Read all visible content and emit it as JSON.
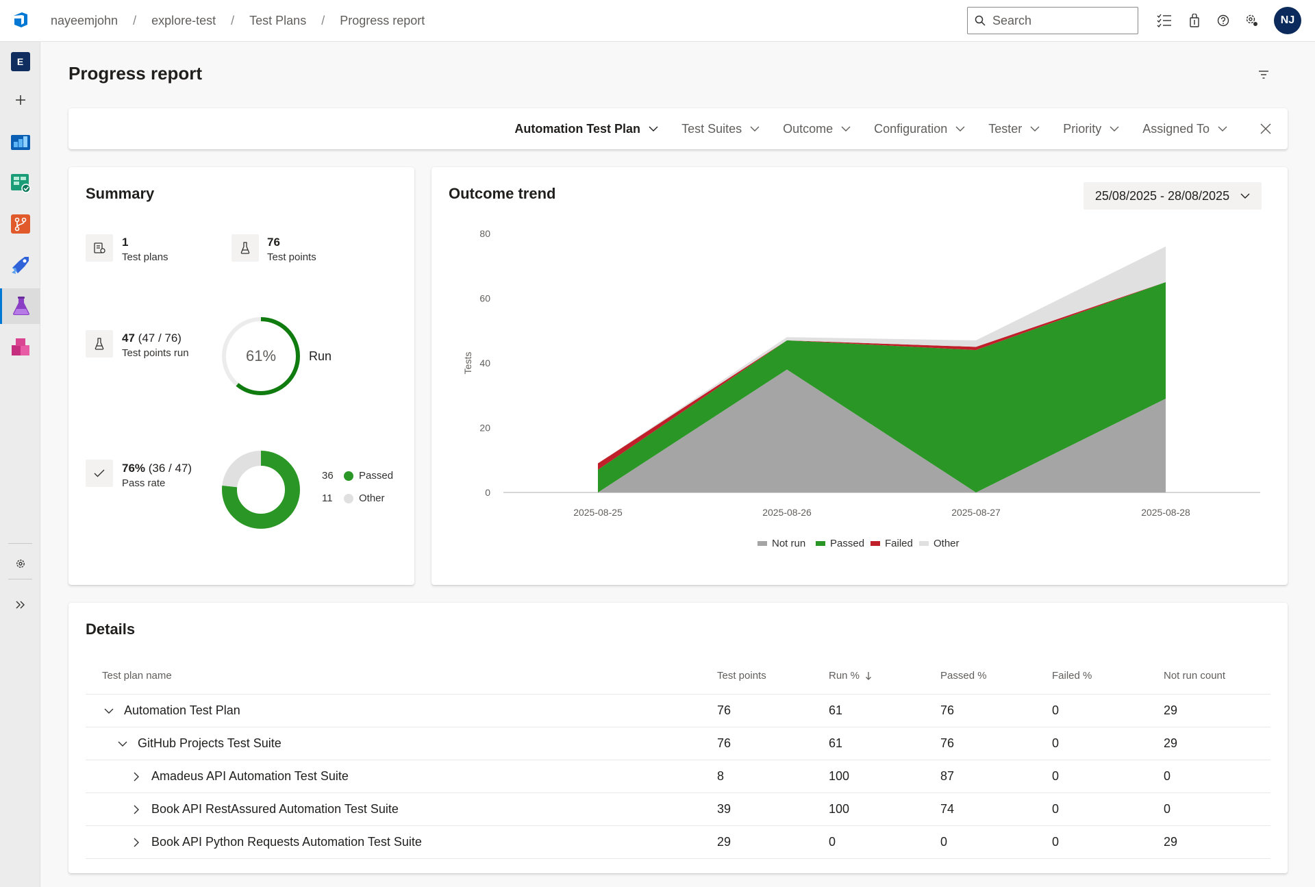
{
  "breadcrumb": [
    "nayeemjohn",
    "explore-test",
    "Test Plans",
    "Progress report"
  ],
  "search": {
    "placeholder": "Search"
  },
  "user": {
    "initials": "NJ"
  },
  "project": {
    "badge": "E"
  },
  "page": {
    "title": "Progress report"
  },
  "filters": [
    "Automation Test Plan",
    "Test Suites",
    "Outcome",
    "Configuration",
    "Tester",
    "Priority",
    "Assigned To"
  ],
  "summary": {
    "title": "Summary",
    "test_plans": {
      "value": "1",
      "label": "Test plans"
    },
    "test_points": {
      "value": "76",
      "label": "Test points"
    },
    "points_run": {
      "value": "47",
      "detail": "(47 / 76)",
      "label": "Test points run"
    },
    "run": {
      "percent": 61,
      "percent_text": "61%",
      "label": "Run"
    },
    "pass_rate": {
      "value": "76%",
      "detail": "(36 / 47)",
      "label": "Pass rate"
    },
    "pass_donut": {
      "passed": 36,
      "other": 11,
      "passed_label": "Passed",
      "other_label": "Other"
    }
  },
  "trend": {
    "title": "Outcome trend",
    "date_range": "25/08/2025 - 28/08/2025"
  },
  "colors": {
    "not_run": "#a5a5a5",
    "passed": "#2a9625",
    "failed": "#c0202a",
    "other": "#e0e0e0",
    "run_ring": "#107c10",
    "accent": "#0078d4"
  },
  "chart_data": {
    "type": "area",
    "stacked": true,
    "x": [
      "2025-08-25",
      "2025-08-26",
      "2025-08-27",
      "2025-08-28"
    ],
    "ylabel": "Tests",
    "ylim": [
      0,
      80
    ],
    "yticks": [
      0,
      20,
      40,
      60,
      80
    ],
    "legend_position": "bottom",
    "series": [
      {
        "name": "Not run",
        "values": [
          0,
          38,
          0,
          29
        ]
      },
      {
        "name": "Passed",
        "values": [
          7,
          9,
          44,
          36
        ]
      },
      {
        "name": "Failed",
        "values": [
          2,
          0,
          1,
          0
        ]
      },
      {
        "name": "Other",
        "values": [
          0,
          1,
          2,
          11
        ]
      }
    ]
  },
  "details": {
    "title": "Details",
    "columns": [
      "Test plan name",
      "Test points",
      "Run %",
      "Passed %",
      "Failed %",
      "Not run count"
    ],
    "rows": [
      {
        "name": "Automation Test Plan",
        "level": 0,
        "expanded": true,
        "values": [
          "76",
          "61",
          "76",
          "0",
          "29"
        ]
      },
      {
        "name": "GitHub Projects Test Suite",
        "level": 1,
        "expanded": true,
        "values": [
          "76",
          "61",
          "76",
          "0",
          "29"
        ]
      },
      {
        "name": "Amadeus API Automation Test Suite",
        "level": 2,
        "expanded": false,
        "values": [
          "8",
          "100",
          "87",
          "0",
          "0"
        ]
      },
      {
        "name": "Book API RestAssured Automation Test Suite",
        "level": 2,
        "expanded": false,
        "values": [
          "39",
          "100",
          "74",
          "0",
          "0"
        ]
      },
      {
        "name": "Book API Python Requests Automation Test Suite",
        "level": 2,
        "expanded": false,
        "values": [
          "29",
          "0",
          "0",
          "0",
          "29"
        ]
      }
    ]
  }
}
